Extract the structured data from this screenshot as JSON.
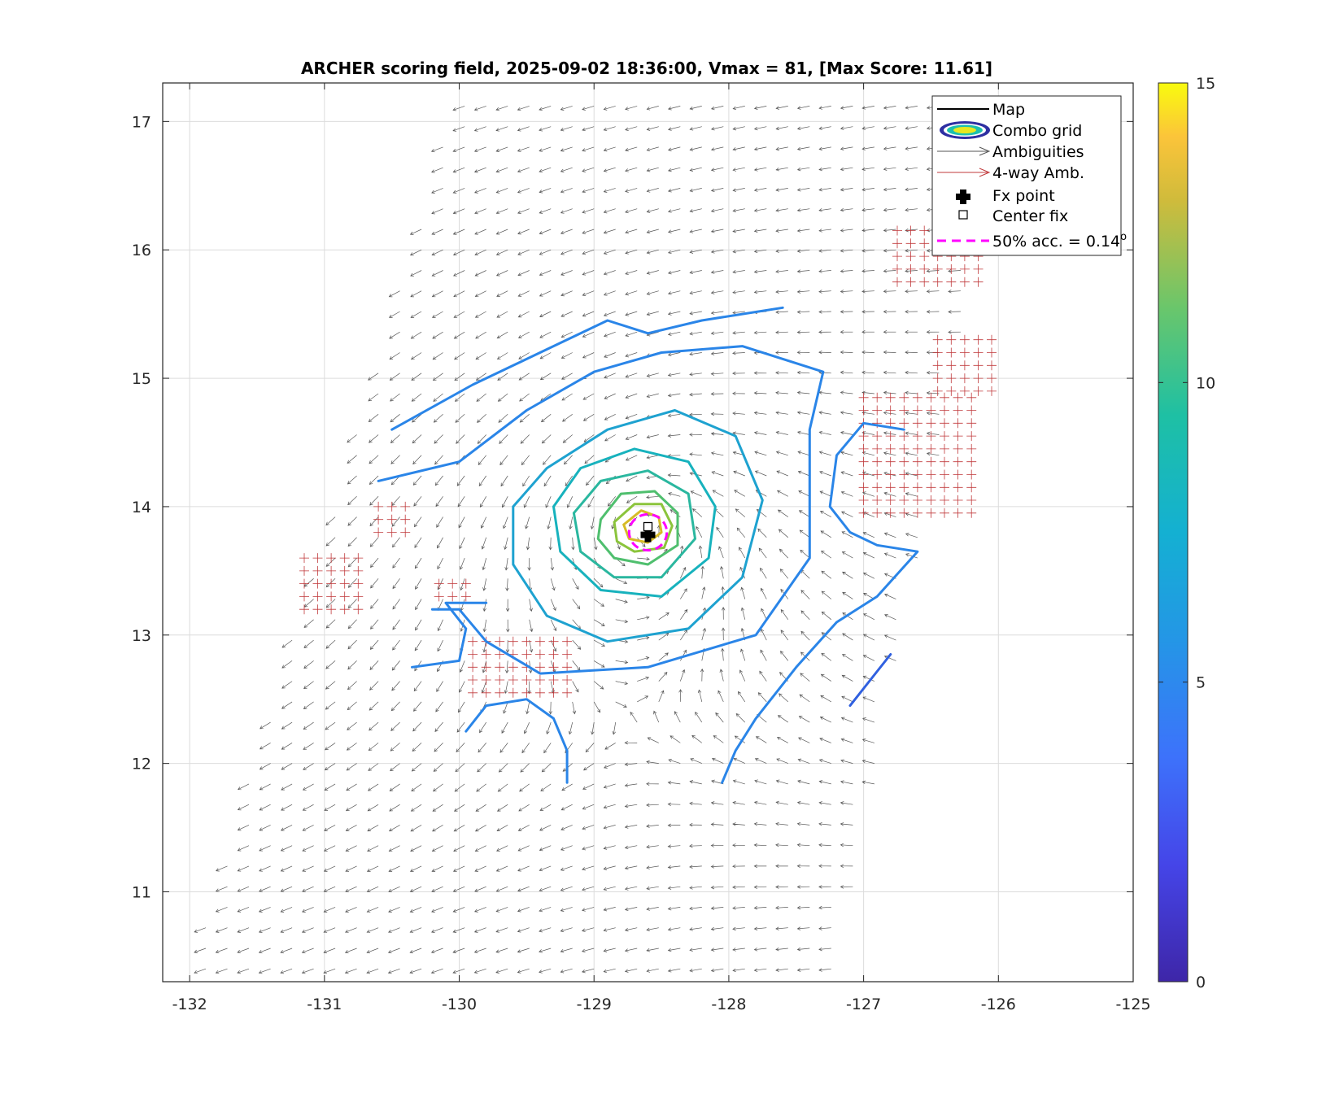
{
  "chart_data": {
    "type": "vector-field-contour",
    "title": "ARCHER scoring field, 2025-09-02 18:36:00, Vmax = 81, [Max Score: 11.61]",
    "xlim": [
      -132.2,
      -125
    ],
    "ylim": [
      10.3,
      17.3
    ],
    "xticks": [
      -132,
      -131,
      -130,
      -129,
      -128,
      -127,
      -126,
      -125
    ],
    "yticks": [
      11,
      12,
      13,
      14,
      15,
      16,
      17
    ],
    "grid": true,
    "colorbar": {
      "min": 0,
      "max": 15,
      "ticks": [
        0,
        5,
        10,
        15
      ]
    },
    "legend": {
      "placement": "top-right",
      "entries": [
        "Map",
        "Combo grid",
        "Ambiguities",
        "4-way Amb.",
        "Fx point",
        "Center fix",
        "50% acc. = 0.14"
      ],
      "superscript": "o"
    },
    "center": {
      "lon": -128.6,
      "lat": 13.8
    },
    "fx_point": {
      "lon": -128.6,
      "lat": 13.78
    },
    "accuracy_deg": 0.14,
    "contours": [
      {
        "level": 5.5,
        "color": "#2a85e8",
        "points": [
          [
            -130.5,
            14.6
          ],
          [
            -129.9,
            14.95
          ],
          [
            -129.4,
            15.2
          ],
          [
            -128.9,
            15.45
          ],
          [
            -128.6,
            15.35
          ],
          [
            -128.2,
            15.45
          ],
          [
            -127.6,
            15.55
          ]
        ]
      },
      {
        "level": 5.5,
        "color": "#2a85e8",
        "points": [
          [
            -130.6,
            14.2
          ],
          [
            -130.0,
            14.35
          ],
          [
            -129.5,
            14.75
          ],
          [
            -129.0,
            15.05
          ],
          [
            -128.5,
            15.2
          ],
          [
            -127.9,
            15.25
          ],
          [
            -127.3,
            15.05
          ],
          [
            -127.4,
            14.6
          ],
          [
            -127.4,
            14.1
          ],
          [
            -127.4,
            13.6
          ],
          [
            -127.8,
            13.0
          ],
          [
            -128.6,
            12.75
          ],
          [
            -129.4,
            12.7
          ],
          [
            -129.8,
            12.95
          ],
          [
            -130.0,
            13.2
          ],
          [
            -130.2,
            13.2
          ]
        ]
      },
      {
        "level": 5.5,
        "color": "#2a85e8",
        "points": [
          [
            -130.35,
            12.75
          ],
          [
            -130.0,
            12.8
          ],
          [
            -129.95,
            13.05
          ],
          [
            -130.1,
            13.25
          ],
          [
            -129.8,
            13.25
          ]
        ]
      },
      {
        "level": 5.5,
        "color": "#2a85e8",
        "points": [
          [
            -126.7,
            14.6
          ],
          [
            -127.0,
            14.65
          ],
          [
            -127.2,
            14.4
          ],
          [
            -127.25,
            14.0
          ],
          [
            -127.1,
            13.8
          ],
          [
            -126.9,
            13.7
          ],
          [
            -126.6,
            13.65
          ],
          [
            -126.9,
            13.3
          ],
          [
            -127.2,
            13.1
          ],
          [
            -127.5,
            12.75
          ],
          [
            -127.8,
            12.35
          ],
          [
            -127.95,
            12.1
          ],
          [
            -128.05,
            11.85
          ]
        ]
      },
      {
        "level": 5.5,
        "color": "#2a85e8",
        "points": [
          [
            -129.95,
            12.25
          ],
          [
            -129.8,
            12.45
          ],
          [
            -129.5,
            12.5
          ],
          [
            -129.3,
            12.35
          ],
          [
            -129.2,
            12.1
          ],
          [
            -129.2,
            11.85
          ]
        ]
      },
      {
        "level": 3.5,
        "color": "#3060e0",
        "points": [
          [
            -127.1,
            12.45
          ],
          [
            -126.95,
            12.65
          ],
          [
            -126.8,
            12.85
          ]
        ]
      },
      {
        "level": 6.5,
        "color": "#1ea2d0",
        "points": [
          [
            -129.6,
            14.0
          ],
          [
            -129.35,
            14.3
          ],
          [
            -128.9,
            14.6
          ],
          [
            -128.4,
            14.75
          ],
          [
            -127.95,
            14.55
          ],
          [
            -127.75,
            14.05
          ],
          [
            -127.9,
            13.45
          ],
          [
            -128.3,
            13.05
          ],
          [
            -128.9,
            12.95
          ],
          [
            -129.35,
            13.15
          ],
          [
            -129.6,
            13.55
          ],
          [
            -129.6,
            14.0
          ]
        ]
      },
      {
        "level": 7.5,
        "color": "#17b2bd",
        "points": [
          [
            -129.3,
            14.0
          ],
          [
            -129.1,
            14.3
          ],
          [
            -128.7,
            14.45
          ],
          [
            -128.3,
            14.35
          ],
          [
            -128.1,
            14.0
          ],
          [
            -128.15,
            13.6
          ],
          [
            -128.5,
            13.3
          ],
          [
            -128.95,
            13.35
          ],
          [
            -129.25,
            13.65
          ],
          [
            -129.3,
            14.0
          ]
        ]
      },
      {
        "level": 8.5,
        "color": "#2ab79f",
        "points": [
          [
            -129.15,
            13.95
          ],
          [
            -128.95,
            14.2
          ],
          [
            -128.6,
            14.28
          ],
          [
            -128.3,
            14.1
          ],
          [
            -128.25,
            13.75
          ],
          [
            -128.5,
            13.45
          ],
          [
            -128.85,
            13.45
          ],
          [
            -129.1,
            13.65
          ],
          [
            -129.15,
            13.95
          ]
        ]
      },
      {
        "level": 9.5,
        "color": "#4fbf6e",
        "points": [
          [
            -128.95,
            13.9
          ],
          [
            -128.8,
            14.1
          ],
          [
            -128.55,
            14.12
          ],
          [
            -128.38,
            13.95
          ],
          [
            -128.38,
            13.7
          ],
          [
            -128.6,
            13.55
          ],
          [
            -128.85,
            13.6
          ],
          [
            -128.97,
            13.75
          ],
          [
            -128.95,
            13.9
          ]
        ]
      },
      {
        "level": 10.5,
        "color": "#8bc43c",
        "points": [
          [
            -128.85,
            13.88
          ],
          [
            -128.7,
            14.02
          ],
          [
            -128.5,
            14.02
          ],
          [
            -128.42,
            13.85
          ],
          [
            -128.48,
            13.68
          ],
          [
            -128.7,
            13.65
          ],
          [
            -128.83,
            13.73
          ],
          [
            -128.85,
            13.88
          ]
        ]
      },
      {
        "level": 11.3,
        "color": "#d6bb26",
        "points": [
          [
            -128.78,
            13.86
          ],
          [
            -128.65,
            13.97
          ],
          [
            -128.52,
            13.92
          ],
          [
            -128.5,
            13.8
          ],
          [
            -128.6,
            13.72
          ],
          [
            -128.74,
            13.75
          ],
          [
            -128.78,
            13.86
          ]
        ]
      }
    ],
    "vector_field": {
      "swath": {
        "bottom_lon_range": [
          -132.0,
          -127.2
        ],
        "top_lon_range": [
          -130.0,
          -125.9
        ],
        "lat_range": [
          10.3,
          17.3
        ]
      },
      "spacing_deg": 0.1,
      "color": "#3a3a3a",
      "ambiguity_color": "#c0393b"
    },
    "ambiguity_patches": [
      {
        "lon": [
          -126.75,
          -126.1
        ],
        "lat": [
          15.75,
          16.25
        ]
      },
      {
        "lon": [
          -126.45,
          -126.0
        ],
        "lat": [
          14.9,
          15.3
        ]
      },
      {
        "lon": [
          -127.0,
          -126.15
        ],
        "lat": [
          13.95,
          14.85
        ]
      },
      {
        "lon": [
          -129.9,
          -129.15
        ],
        "lat": [
          12.55,
          13.0
        ]
      },
      {
        "lon": [
          -131.15,
          -130.75
        ],
        "lat": [
          13.2,
          13.65
        ]
      },
      {
        "lon": [
          -130.6,
          -130.4
        ],
        "lat": [
          13.8,
          14.05
        ]
      },
      {
        "lon": [
          -130.15,
          -129.95
        ],
        "lat": [
          13.3,
          13.45
        ]
      }
    ],
    "colors": {
      "accuracy_circle": "#ff00ff",
      "fx_point": "#000000",
      "center_fix": "#000000"
    }
  }
}
